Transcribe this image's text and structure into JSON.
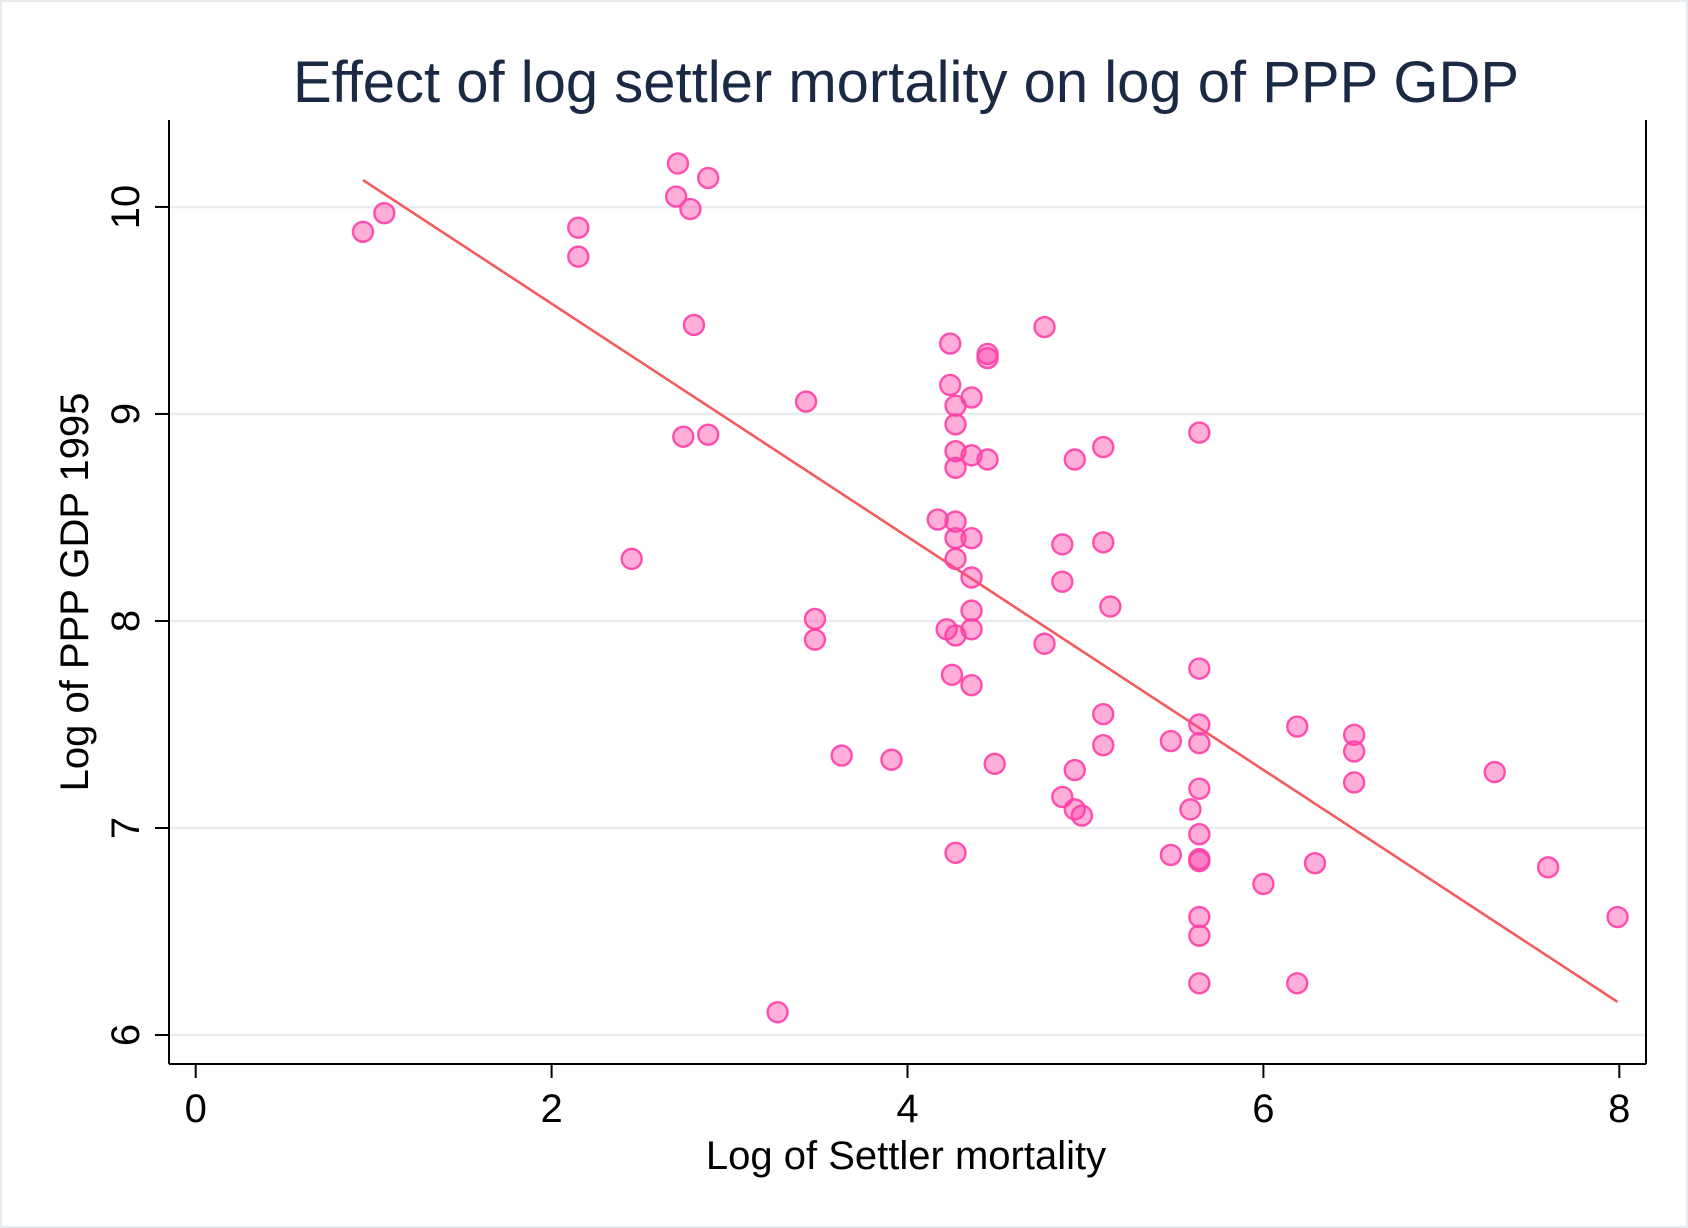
{
  "chart_data": {
    "type": "scatter",
    "title": "Effect of log settler mortality on log of PPP GDP",
    "xlabel": "Log of Settler mortality",
    "ylabel": "Log of PPP GDP 1995",
    "xlim": [
      -0.15,
      8.15
    ],
    "ylim": [
      5.86,
      10.42
    ],
    "x_ticks": [
      0,
      2,
      4,
      6,
      8
    ],
    "y_ticks": [
      6,
      7,
      8,
      9,
      10
    ],
    "grid": "horizontal",
    "legend": "none",
    "colors": {
      "points": "#ff3fa6",
      "fit_line": "#f25c5c",
      "grid": "#e6ecef",
      "title": "#1b2a44"
    },
    "points": [
      {
        "x": 0.94,
        "y": 9.88
      },
      {
        "x": 1.06,
        "y": 9.97
      },
      {
        "x": 2.15,
        "y": 9.9
      },
      {
        "x": 2.15,
        "y": 9.76
      },
      {
        "x": 2.71,
        "y": 10.21
      },
      {
        "x": 2.7,
        "y": 10.05
      },
      {
        "x": 2.88,
        "y": 10.14
      },
      {
        "x": 2.78,
        "y": 9.99
      },
      {
        "x": 2.8,
        "y": 9.43
      },
      {
        "x": 2.74,
        "y": 8.89
      },
      {
        "x": 2.88,
        "y": 8.9
      },
      {
        "x": 2.45,
        "y": 8.3
      },
      {
        "x": 3.43,
        "y": 9.06
      },
      {
        "x": 3.48,
        "y": 8.01
      },
      {
        "x": 3.48,
        "y": 7.91
      },
      {
        "x": 3.63,
        "y": 7.35
      },
      {
        "x": 3.91,
        "y": 7.33
      },
      {
        "x": 3.27,
        "y": 6.11
      },
      {
        "x": 4.17,
        "y": 8.49
      },
      {
        "x": 4.24,
        "y": 9.34
      },
      {
        "x": 4.24,
        "y": 9.14
      },
      {
        "x": 4.27,
        "y": 9.04
      },
      {
        "x": 4.27,
        "y": 8.95
      },
      {
        "x": 4.27,
        "y": 8.82
      },
      {
        "x": 4.27,
        "y": 8.74
      },
      {
        "x": 4.27,
        "y": 8.48
      },
      {
        "x": 4.27,
        "y": 8.4
      },
      {
        "x": 4.27,
        "y": 8.3
      },
      {
        "x": 4.22,
        "y": 7.96
      },
      {
        "x": 4.27,
        "y": 7.93
      },
      {
        "x": 4.25,
        "y": 7.74
      },
      {
        "x": 4.27,
        "y": 6.88
      },
      {
        "x": 4.36,
        "y": 9.08
      },
      {
        "x": 4.36,
        "y": 8.8
      },
      {
        "x": 4.36,
        "y": 8.4
      },
      {
        "x": 4.36,
        "y": 8.21
      },
      {
        "x": 4.36,
        "y": 8.05
      },
      {
        "x": 4.36,
        "y": 7.96
      },
      {
        "x": 4.36,
        "y": 7.69
      },
      {
        "x": 4.45,
        "y": 9.29
      },
      {
        "x": 4.45,
        "y": 9.27
      },
      {
        "x": 4.45,
        "y": 8.78
      },
      {
        "x": 4.49,
        "y": 7.31
      },
      {
        "x": 4.77,
        "y": 9.42
      },
      {
        "x": 4.77,
        "y": 7.89
      },
      {
        "x": 4.87,
        "y": 8.37
      },
      {
        "x": 4.87,
        "y": 8.19
      },
      {
        "x": 4.87,
        "y": 7.15
      },
      {
        "x": 4.94,
        "y": 8.78
      },
      {
        "x": 4.94,
        "y": 7.28
      },
      {
        "x": 4.94,
        "y": 7.09
      },
      {
        "x": 4.98,
        "y": 7.06
      },
      {
        "x": 5.1,
        "y": 8.84
      },
      {
        "x": 5.1,
        "y": 8.38
      },
      {
        "x": 5.14,
        "y": 8.07
      },
      {
        "x": 5.1,
        "y": 7.55
      },
      {
        "x": 5.1,
        "y": 7.4
      },
      {
        "x": 5.48,
        "y": 7.42
      },
      {
        "x": 5.48,
        "y": 6.87
      },
      {
        "x": 5.59,
        "y": 7.09
      },
      {
        "x": 5.64,
        "y": 8.91
      },
      {
        "x": 5.64,
        "y": 7.77
      },
      {
        "x": 5.64,
        "y": 7.5
      },
      {
        "x": 5.64,
        "y": 7.41
      },
      {
        "x": 5.64,
        "y": 7.19
      },
      {
        "x": 5.64,
        "y": 6.97
      },
      {
        "x": 5.64,
        "y": 6.85
      },
      {
        "x": 5.64,
        "y": 6.84
      },
      {
        "x": 5.64,
        "y": 6.57
      },
      {
        "x": 5.64,
        "y": 6.48
      },
      {
        "x": 5.64,
        "y": 6.25
      },
      {
        "x": 6.0,
        "y": 6.73
      },
      {
        "x": 6.19,
        "y": 7.49
      },
      {
        "x": 6.19,
        "y": 6.25
      },
      {
        "x": 6.29,
        "y": 6.83
      },
      {
        "x": 6.51,
        "y": 7.45
      },
      {
        "x": 6.51,
        "y": 7.37
      },
      {
        "x": 6.51,
        "y": 7.22
      },
      {
        "x": 7.3,
        "y": 7.27
      },
      {
        "x": 7.6,
        "y": 6.81
      },
      {
        "x": 7.99,
        "y": 6.57
      }
    ],
    "fit_line": {
      "x": [
        0.94,
        7.99
      ],
      "y": [
        10.13,
        6.16
      ]
    }
  }
}
